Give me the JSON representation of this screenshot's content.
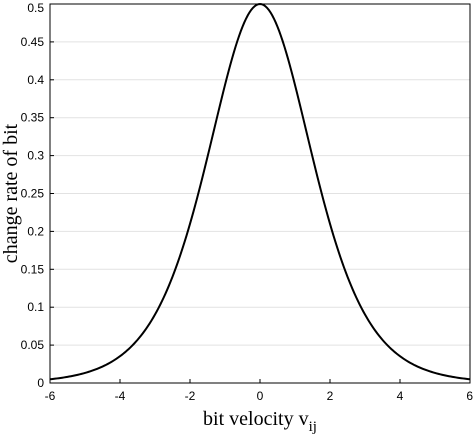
{
  "chart_data": {
    "type": "line",
    "title": "",
    "xlabel": "bit velocity v",
    "xlabel_subscript": "ij",
    "ylabel": "change rate of bit",
    "xlim": [
      -6,
      6
    ],
    "ylim": [
      0,
      0.5
    ],
    "xticks": [
      "-6",
      "-4",
      "-2",
      "0",
      "2",
      "4",
      "6"
    ],
    "yticks": [
      "0",
      "0.05",
      "0.1",
      "0.15",
      "0.2",
      "0.25",
      "0.3",
      "0.35",
      "0.4",
      "0.45",
      "0.5"
    ],
    "grid": "horizontal",
    "series": [
      {
        "color": "#000000",
        "x": [
          -6,
          -5.5,
          -5,
          -4.5,
          -4,
          -3.5,
          -3,
          -2.5,
          -2,
          -1.5,
          -1,
          -0.5,
          0,
          0.5,
          1,
          1.5,
          2,
          2.5,
          3,
          3.5,
          4,
          4.5,
          5,
          5.5,
          6
        ],
        "y": [
          0.0049,
          0.0081,
          0.0133,
          0.0219,
          0.036,
          0.0586,
          0.0949,
          0.1514,
          0.2384,
          0.3622,
          0.4637,
          0.4991,
          0.5,
          0.4991,
          0.4637,
          0.3622,
          0.2384,
          0.1514,
          0.0949,
          0.0586,
          0.036,
          0.0219,
          0.0133,
          0.0081,
          0.0049
        ]
      }
    ]
  }
}
